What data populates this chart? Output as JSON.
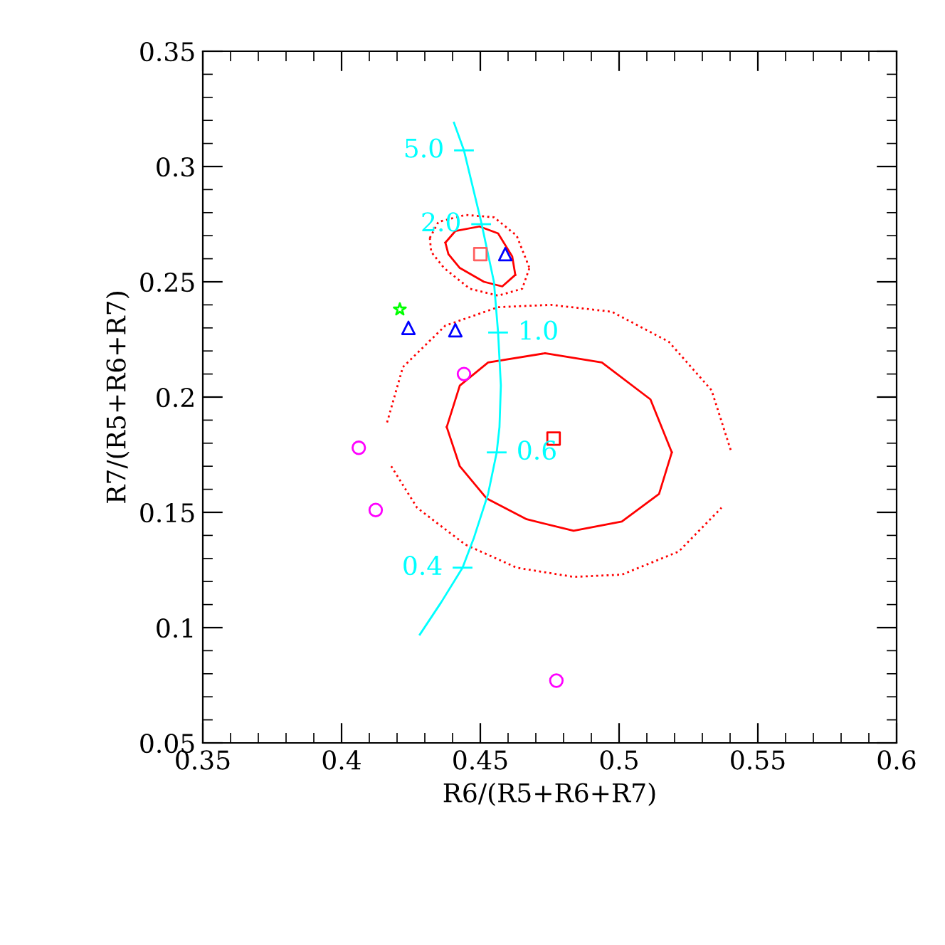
{
  "chart_data": {
    "type": "scatter",
    "xlabel": "R6/(R5+R6+R7)",
    "ylabel": "R7/(R5+R6+R7)",
    "xlim": [
      0.35,
      0.6
    ],
    "xticks": [
      0.35,
      0.4,
      0.45,
      0.5,
      0.55,
      0.6
    ],
    "ylim": [
      0.05,
      0.35
    ],
    "yticks": [
      0.05,
      0.1,
      0.15,
      0.2,
      0.25,
      0.3,
      0.35
    ],
    "grid": false,
    "legend": false,
    "series": [
      {
        "type": "line",
        "color": "#ff0000",
        "line_style": "solid",
        "x": [
          0.4379,
          0.4426,
          0.4528,
          0.4733,
          0.4938,
          0.5113,
          0.519
        ],
        "values": [
          0.187,
          0.205,
          0.215,
          0.219,
          0.215,
          0.199,
          0.176
        ]
      },
      {
        "type": "line",
        "color": "#ff0000",
        "line_style": "solid",
        "x": [
          0.4379,
          0.4426,
          0.4523,
          0.4667,
          0.4836,
          0.501,
          0.5144,
          0.519
        ],
        "values": [
          0.187,
          0.17,
          0.156,
          0.147,
          0.142,
          0.146,
          0.158,
          0.176
        ]
      },
      {
        "type": "line",
        "color": "#ff0000",
        "line_style": "dotted",
        "x": [
          0.4164,
          0.4221,
          0.4374,
          0.4564,
          0.4754,
          0.4974,
          0.5179,
          0.5333,
          0.5405
        ],
        "values": [
          0.189,
          0.213,
          0.231,
          0.239,
          0.24,
          0.237,
          0.224,
          0.203,
          0.176
        ]
      },
      {
        "type": "line",
        "color": "#ff0000",
        "line_style": "dotted",
        "x": [
          0.4179,
          0.4272,
          0.4446,
          0.4631,
          0.4836,
          0.501,
          0.5215,
          0.5369
        ],
        "values": [
          0.17,
          0.152,
          0.136,
          0.126,
          0.122,
          0.123,
          0.133,
          0.152
        ]
      },
      {
        "type": "line",
        "color": "#ff0000",
        "line_style": "solid",
        "x": [
          0.4374,
          0.441,
          0.4497,
          0.4564,
          0.4615,
          0.4626
        ],
        "values": [
          0.267,
          0.272,
          0.274,
          0.271,
          0.261,
          0.253
        ]
      },
      {
        "type": "line",
        "color": "#ff0000",
        "line_style": "solid",
        "x": [
          0.4374,
          0.4385,
          0.4426,
          0.4513,
          0.4579,
          0.4626
        ],
        "values": [
          0.267,
          0.262,
          0.256,
          0.25,
          0.248,
          0.253
        ]
      },
      {
        "type": "line",
        "color": "#ff0000",
        "line_style": "dotted",
        "x": [
          0.4318,
          0.4349,
          0.4446,
          0.4549,
          0.4631,
          0.4677
        ],
        "values": [
          0.269,
          0.276,
          0.279,
          0.278,
          0.27,
          0.256
        ]
      },
      {
        "type": "line",
        "color": "#ff0000",
        "line_style": "dotted",
        "x": [
          0.4318,
          0.4323,
          0.4369,
          0.4462,
          0.4564,
          0.4651,
          0.4677
        ],
        "values": [
          0.269,
          0.263,
          0.256,
          0.247,
          0.244,
          0.247,
          0.256
        ]
      },
      {
        "type": "line",
        "color": "#00ffff",
        "line_style": "solid",
        "x": [
          0.4405,
          0.4441,
          0.4503,
          0.4549,
          0.4564,
          0.4574,
          0.4569,
          0.4559,
          0.4528,
          0.4477,
          0.4436,
          0.4359,
          0.4282
        ],
        "values": [
          0.319,
          0.307,
          0.276,
          0.25,
          0.228,
          0.205,
          0.187,
          0.176,
          0.158,
          0.139,
          0.126,
          0.111,
          0.097
        ]
      },
      {
        "type": "scatter",
        "color": "#ff0000",
        "marker": "square",
        "x": [
          0.4764
        ],
        "values": [
          0.182
        ]
      },
      {
        "type": "scatter",
        "color": "#ff6060",
        "marker": "square",
        "x": [
          0.45
        ],
        "values": [
          0.262
        ]
      },
      {
        "type": "scatter",
        "color": "#0000ff",
        "marker": "triangle",
        "x": [
          0.459,
          0.4241,
          0.441
        ],
        "values": [
          0.262,
          0.23,
          0.229
        ]
      },
      {
        "type": "scatter",
        "color": "#00ff00",
        "marker": "star",
        "x": [
          0.421
        ],
        "values": [
          0.238
        ]
      },
      {
        "type": "scatter",
        "color": "#ff00ff",
        "marker": "circle",
        "x": [
          0.4441,
          0.4062,
          0.4123,
          0.4774
        ],
        "values": [
          0.21,
          0.178,
          0.151,
          0.077
        ]
      }
    ],
    "annotations": [
      {
        "text": "5.0",
        "x": 0.4441,
        "y": 0.307
      },
      {
        "text": "2.0",
        "x": 0.4503,
        "y": 0.275
      },
      {
        "text": "1.0",
        "x": 0.4564,
        "y": 0.228
      },
      {
        "text": "0.6",
        "x": 0.4559,
        "y": 0.176
      },
      {
        "text": "0.4",
        "x": 0.4436,
        "y": 0.126
      }
    ]
  }
}
